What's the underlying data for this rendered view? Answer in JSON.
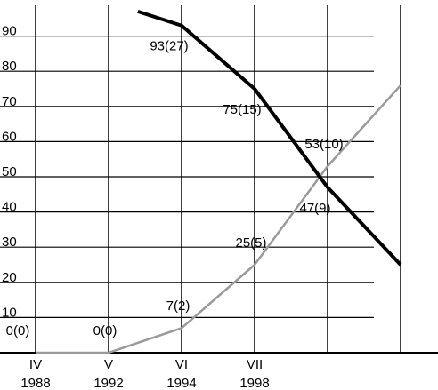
{
  "chart_data": {
    "type": "line",
    "categories": [
      "IV",
      "V",
      "VI",
      "VII"
    ],
    "years": [
      "1988",
      "1992",
      "1994",
      "1998"
    ],
    "xlim": [
      0,
      5
    ],
    "xticks": [
      0,
      1,
      2,
      3,
      4,
      5
    ],
    "ylim": [
      0,
      100
    ],
    "yticks": [
      10,
      20,
      30,
      40,
      50,
      60,
      70,
      80,
      90
    ],
    "grid": true,
    "series": [
      {
        "color": "#9a9a9a",
        "width": 2.5,
        "x": [
          0,
          1,
          2,
          3,
          4,
          5
        ],
        "values": [
          0,
          0,
          7,
          25,
          53,
          76
        ],
        "value_labels": [
          "0(0)",
          "0(0)",
          "7(2)",
          "25(5)",
          "53(10)",
          null
        ]
      },
      {
        "color": "#000000",
        "width": 4,
        "x": [
          1.4,
          2,
          3,
          4,
          5
        ],
        "values": [
          97,
          93,
          75,
          47,
          25
        ],
        "value_labels": [
          null,
          "93(27)",
          "75(15)",
          "47(9)",
          null
        ]
      }
    ]
  }
}
